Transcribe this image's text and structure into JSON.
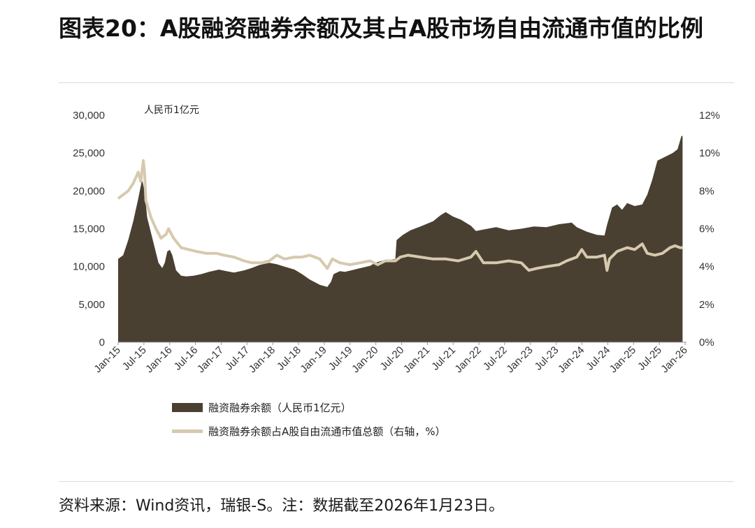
{
  "title": "图表20：A股融资融券余额及其占A股市场自由流通市值的比例",
  "chart_data": {
    "type": "area",
    "unit_label": "人民币1亿元",
    "left_axis": {
      "ylim": [
        0,
        30000
      ],
      "ticks": [
        "0",
        "5,000",
        "10,000",
        "15,000",
        "20,000",
        "25,000",
        "30,000"
      ]
    },
    "right_axis": {
      "ylim": [
        0,
        12
      ],
      "ticks": [
        "0%",
        "2%",
        "4%",
        "6%",
        "8%",
        "10%",
        "12%"
      ]
    },
    "x_ticks": [
      "Jan-15",
      "Jul-15",
      "Jan-16",
      "Jul-16",
      "Jan-17",
      "Jul-17",
      "Jan-18",
      "Jul-18",
      "Jan-19",
      "Jul-19",
      "Jan-20",
      "Jul-20",
      "Jan-21",
      "Jul-21",
      "Jan-22",
      "Jul-22",
      "Jan-23",
      "Jul-23",
      "Jan-24",
      "Jul-24",
      "Jan-25",
      "Jul-25",
      "Jan-26"
    ],
    "x_range": [
      0,
      22.5
    ],
    "series": [
      {
        "name": "融资融券余额（人民币1亿元）",
        "axis": "left",
        "style": "area",
        "color": "#4a4032",
        "points": [
          [
            0,
            11000
          ],
          [
            0.2,
            11500
          ],
          [
            0.4,
            13500
          ],
          [
            0.6,
            16000
          ],
          [
            0.8,
            19000
          ],
          [
            0.95,
            21500
          ],
          [
            1.05,
            20000
          ],
          [
            1.15,
            16500
          ],
          [
            1.3,
            14500
          ],
          [
            1.45,
            12500
          ],
          [
            1.6,
            10500
          ],
          [
            1.75,
            9800
          ],
          [
            1.85,
            10500
          ],
          [
            1.95,
            12000
          ],
          [
            2.05,
            12200
          ],
          [
            2.15,
            11500
          ],
          [
            2.3,
            9500
          ],
          [
            2.5,
            8800
          ],
          [
            2.7,
            8700
          ],
          [
            3.0,
            8800
          ],
          [
            3.3,
            9000
          ],
          [
            3.6,
            9300
          ],
          [
            4.0,
            9600
          ],
          [
            4.3,
            9400
          ],
          [
            4.6,
            9200
          ],
          [
            5.0,
            9500
          ],
          [
            5.3,
            9800
          ],
          [
            5.6,
            10200
          ],
          [
            6.0,
            10500
          ],
          [
            6.3,
            10300
          ],
          [
            6.6,
            10000
          ],
          [
            7.0,
            9600
          ],
          [
            7.3,
            9000
          ],
          [
            7.6,
            8300
          ],
          [
            8.0,
            7600
          ],
          [
            8.3,
            7300
          ],
          [
            8.45,
            8000
          ],
          [
            8.55,
            9000
          ],
          [
            8.8,
            9400
          ],
          [
            9.0,
            9300
          ],
          [
            9.5,
            9700
          ],
          [
            10.0,
            10100
          ],
          [
            10.2,
            10500
          ],
          [
            10.5,
            10800
          ],
          [
            11.0,
            11000
          ],
          [
            11.05,
            13500
          ],
          [
            11.3,
            14200
          ],
          [
            11.6,
            14800
          ],
          [
            12.0,
            15300
          ],
          [
            12.5,
            16000
          ],
          [
            12.8,
            16800
          ],
          [
            13.0,
            17200
          ],
          [
            13.3,
            16600
          ],
          [
            13.6,
            16200
          ],
          [
            14.0,
            15400
          ],
          [
            14.2,
            14700
          ],
          [
            14.5,
            14900
          ],
          [
            15.0,
            15200
          ],
          [
            15.5,
            14800
          ],
          [
            16.0,
            15000
          ],
          [
            16.5,
            15300
          ],
          [
            17.0,
            15200
          ],
          [
            17.5,
            15600
          ],
          [
            18.0,
            15800
          ],
          [
            18.2,
            15200
          ],
          [
            18.6,
            14600
          ],
          [
            19.0,
            14200
          ],
          [
            19.3,
            14100
          ],
          [
            19.4,
            15500
          ],
          [
            19.6,
            17800
          ],
          [
            19.8,
            18200
          ],
          [
            20.0,
            17500
          ],
          [
            20.2,
            18400
          ],
          [
            20.5,
            18000
          ],
          [
            20.8,
            18200
          ],
          [
            21.0,
            19500
          ],
          [
            21.2,
            21500
          ],
          [
            21.4,
            24000
          ],
          [
            21.7,
            24500
          ],
          [
            22.0,
            25000
          ],
          [
            22.2,
            25500
          ],
          [
            22.35,
            27200
          ],
          [
            22.4,
            27300
          ]
        ]
      },
      {
        "name": "融资融券余额占A股自由流通市值总额（右轴，%）",
        "axis": "right",
        "style": "line",
        "color": "#d6c9ae",
        "points": [
          [
            0,
            7.6
          ],
          [
            0.2,
            7.8
          ],
          [
            0.4,
            8.0
          ],
          [
            0.6,
            8.4
          ],
          [
            0.8,
            9.0
          ],
          [
            0.9,
            8.5
          ],
          [
            1.0,
            9.6
          ],
          [
            1.05,
            9.0
          ],
          [
            1.1,
            7.5
          ],
          [
            1.3,
            6.6
          ],
          [
            1.5,
            6.0
          ],
          [
            1.7,
            5.5
          ],
          [
            1.9,
            5.7
          ],
          [
            2.0,
            6.0
          ],
          [
            2.2,
            5.5
          ],
          [
            2.5,
            5.0
          ],
          [
            2.8,
            4.9
          ],
          [
            3.1,
            4.8
          ],
          [
            3.5,
            4.7
          ],
          [
            3.9,
            4.7
          ],
          [
            4.2,
            4.6
          ],
          [
            4.6,
            4.5
          ],
          [
            5.0,
            4.3
          ],
          [
            5.3,
            4.2
          ],
          [
            5.7,
            4.2
          ],
          [
            6.0,
            4.3
          ],
          [
            6.3,
            4.6
          ],
          [
            6.6,
            4.4
          ],
          [
            7.0,
            4.5
          ],
          [
            7.3,
            4.5
          ],
          [
            7.6,
            4.6
          ],
          [
            8.0,
            4.4
          ],
          [
            8.3,
            3.9
          ],
          [
            8.5,
            4.4
          ],
          [
            8.8,
            4.2
          ],
          [
            9.2,
            4.1
          ],
          [
            9.6,
            4.2
          ],
          [
            10.0,
            4.3
          ],
          [
            10.3,
            4.1
          ],
          [
            10.6,
            4.3
          ],
          [
            11.0,
            4.3
          ],
          [
            11.2,
            4.5
          ],
          [
            11.5,
            4.6
          ],
          [
            12.0,
            4.5
          ],
          [
            12.5,
            4.4
          ],
          [
            13.0,
            4.4
          ],
          [
            13.5,
            4.3
          ],
          [
            14.0,
            4.5
          ],
          [
            14.2,
            4.8
          ],
          [
            14.5,
            4.2
          ],
          [
            15.0,
            4.2
          ],
          [
            15.5,
            4.3
          ],
          [
            16.0,
            4.2
          ],
          [
            16.3,
            3.8
          ],
          [
            16.6,
            3.9
          ],
          [
            17.0,
            4.0
          ],
          [
            17.5,
            4.1
          ],
          [
            17.8,
            4.3
          ],
          [
            18.2,
            4.5
          ],
          [
            18.4,
            4.9
          ],
          [
            18.6,
            4.5
          ],
          [
            19.0,
            4.5
          ],
          [
            19.3,
            4.6
          ],
          [
            19.4,
            3.8
          ],
          [
            19.5,
            4.4
          ],
          [
            19.8,
            4.8
          ],
          [
            20.2,
            5.0
          ],
          [
            20.5,
            4.9
          ],
          [
            20.8,
            5.2
          ],
          [
            21.0,
            4.7
          ],
          [
            21.3,
            4.6
          ],
          [
            21.6,
            4.7
          ],
          [
            21.9,
            5.0
          ],
          [
            22.1,
            5.1
          ],
          [
            22.3,
            5.0
          ],
          [
            22.4,
            5.0
          ]
        ]
      }
    ]
  },
  "legend": {
    "item1": "融资融券余额（人民币1亿元）",
    "item2": "融资融券余额占A股自由流通市值总额（右轴，%）"
  },
  "source": "资料来源：Wind资讯，瑞银-S。注：数据截至2026年1月23日。"
}
